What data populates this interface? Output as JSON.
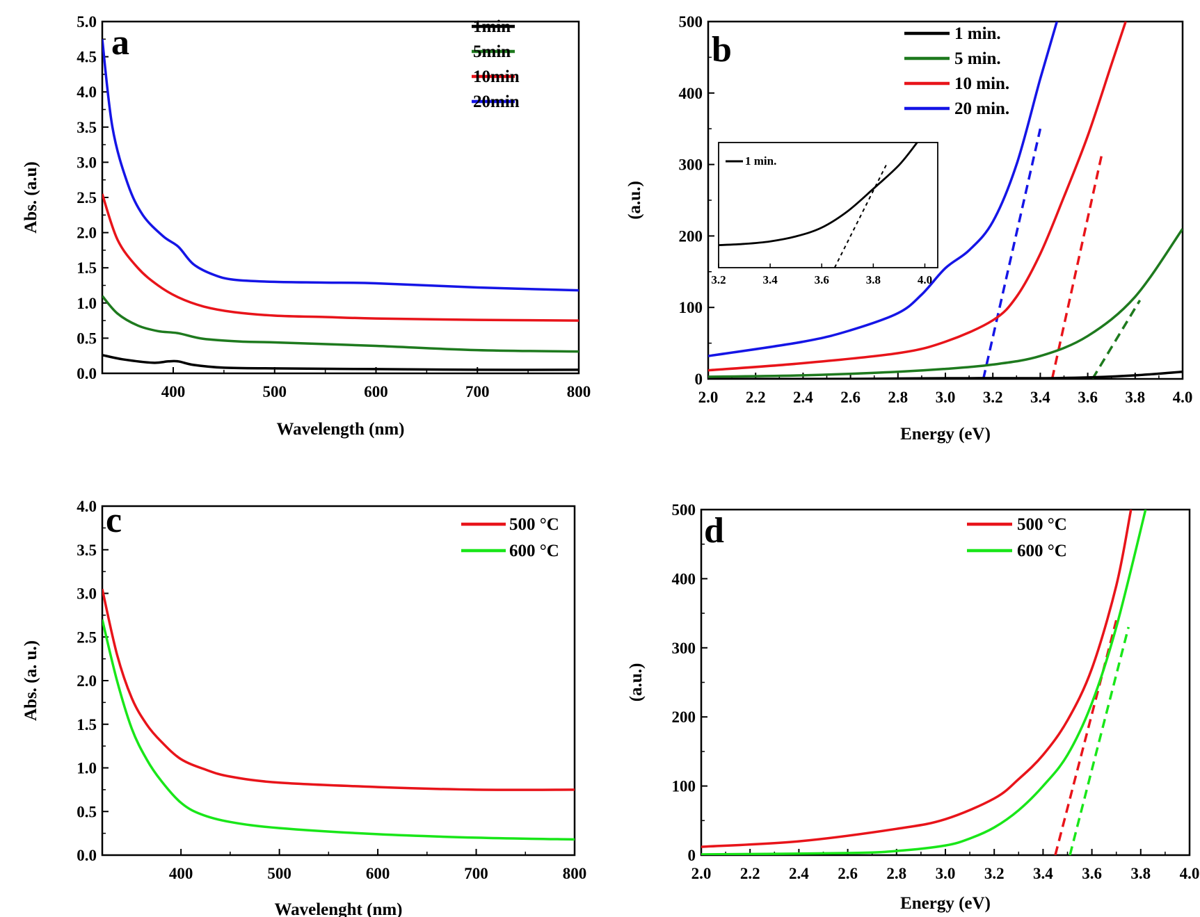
{
  "chart_data": [
    {
      "id": "a",
      "type": "line",
      "panel_label": "a",
      "xlabel": "Wavelength (nm)",
      "ylabel": "Abs. (a.u)",
      "xlim": [
        330,
        800
      ],
      "ylim": [
        0,
        5.0
      ],
      "xticks": [
        400,
        500,
        600,
        700,
        800
      ],
      "xtick_labels": [
        "400",
        "500",
        "600",
        "700",
        "800"
      ],
      "yticks": [
        0,
        0.5,
        1.0,
        1.5,
        2.0,
        2.5,
        3.0,
        3.5,
        4.0,
        4.5,
        5.0
      ],
      "ytick_labels": [
        "0.0",
        "0.5",
        "1.0",
        "1.5",
        "2.0",
        "2.5",
        "3.0",
        "3.5",
        "4.0",
        "4.5",
        "5.0"
      ],
      "legend_position": "top-right",
      "series": [
        {
          "name": "1min",
          "color": "#000000",
          "x": [
            330,
            350,
            380,
            395,
            405,
            420,
            450,
            500,
            600,
            700,
            800
          ],
          "y": [
            0.26,
            0.2,
            0.15,
            0.17,
            0.17,
            0.12,
            0.08,
            0.07,
            0.06,
            0.05,
            0.05
          ]
        },
        {
          "name": "5min",
          "color": "#1e7a1e",
          "x": [
            330,
            345,
            365,
            385,
            405,
            430,
            470,
            500,
            600,
            700,
            800
          ],
          "y": [
            1.1,
            0.85,
            0.68,
            0.6,
            0.57,
            0.49,
            0.45,
            0.44,
            0.39,
            0.33,
            0.31
          ]
        },
        {
          "name": "10min",
          "color": "#e8141a",
          "x": [
            330,
            345,
            365,
            385,
            405,
            430,
            460,
            500,
            550,
            600,
            700,
            800
          ],
          "y": [
            2.55,
            1.9,
            1.5,
            1.25,
            1.08,
            0.95,
            0.87,
            0.82,
            0.8,
            0.78,
            0.76,
            0.75
          ]
        },
        {
          "name": "20min",
          "color": "#1515e6",
          "x": [
            330,
            340,
            355,
            370,
            390,
            405,
            420,
            440,
            460,
            500,
            550,
            600,
            700,
            800
          ],
          "y": [
            4.75,
            3.5,
            2.7,
            2.25,
            1.95,
            1.8,
            1.55,
            1.4,
            1.33,
            1.3,
            1.29,
            1.28,
            1.22,
            1.18
          ]
        }
      ]
    },
    {
      "id": "b",
      "type": "line",
      "panel_label": "b",
      "xlabel": "Energy (eV)",
      "ylabel": "(a.u.)",
      "xlim": [
        2.0,
        4.0
      ],
      "ylim": [
        0,
        500
      ],
      "xticks": [
        2.0,
        2.2,
        2.4,
        2.6,
        2.8,
        3.0,
        3.2,
        3.4,
        3.6,
        3.8,
        4.0
      ],
      "xtick_labels": [
        "2.0",
        "2.2",
        "2.4",
        "2.6",
        "2.8",
        "3.0",
        "3.2",
        "3.4",
        "3.6",
        "3.8",
        "4.0"
      ],
      "yticks": [
        0,
        100,
        200,
        300,
        400,
        500
      ],
      "ytick_labels": [
        "0",
        "100",
        "200",
        "300",
        "400",
        "500"
      ],
      "legend_position": "top-center",
      "series": [
        {
          "name": "1 min.",
          "color": "#000000",
          "x": [
            2.0,
            2.6,
            3.0,
            3.4,
            3.6,
            3.8,
            4.0
          ],
          "y": [
            0,
            0,
            1,
            1,
            2,
            5,
            10
          ]
        },
        {
          "name": "5 min.",
          "color": "#1e7a1e",
          "x": [
            2.0,
            2.4,
            2.8,
            3.0,
            3.2,
            3.4,
            3.6,
            3.8,
            4.0
          ],
          "y": [
            3,
            5,
            10,
            14,
            20,
            32,
            60,
            115,
            210
          ]
        },
        {
          "name": "10 min.",
          "color": "#e8141a",
          "x": [
            2.0,
            2.4,
            2.8,
            3.0,
            3.2,
            3.3,
            3.4,
            3.5,
            3.6,
            3.7,
            3.76
          ],
          "y": [
            12,
            22,
            36,
            52,
            82,
            115,
            175,
            255,
            340,
            440,
            500
          ]
        },
        {
          "name": "20 min.",
          "color": "#1515e6",
          "x": [
            2.0,
            2.4,
            2.6,
            2.8,
            2.9,
            3.0,
            3.1,
            3.2,
            3.3,
            3.4,
            3.47
          ],
          "y": [
            32,
            52,
            68,
            92,
            118,
            155,
            180,
            220,
            300,
            420,
            500
          ]
        }
      ],
      "fits": [
        {
          "color": "#1515e6",
          "x": [
            3.16,
            3.4
          ],
          "y": [
            0,
            350
          ]
        },
        {
          "color": "#e8141a",
          "x": [
            3.45,
            3.66
          ],
          "y": [
            0,
            315
          ]
        },
        {
          "color": "#1e7a1e",
          "x": [
            3.62,
            3.82
          ],
          "y": [
            0,
            110
          ]
        }
      ],
      "inset": {
        "xlim": [
          3.2,
          4.05
        ],
        "ylim": [
          0,
          100
        ],
        "xticks": [
          3.2,
          3.4,
          3.6,
          3.8,
          4.0
        ],
        "xtick_labels": [
          "3.2",
          "3.4",
          "3.6",
          "3.8",
          "4.0"
        ],
        "legend": "1 min.",
        "series": {
          "color": "#000000",
          "x": [
            3.2,
            3.3,
            3.4,
            3.5,
            3.6,
            3.7,
            3.8,
            3.9,
            3.97
          ],
          "y": [
            18,
            19,
            21,
            25,
            32,
            45,
            63,
            82,
            100
          ]
        },
        "fit": {
          "x": [
            3.65,
            3.85
          ],
          "y": [
            0,
            82
          ]
        }
      }
    },
    {
      "id": "c",
      "type": "line",
      "panel_label": "c",
      "xlabel": "Wavelenght (nm)",
      "ylabel": "Abs. (a. u.)",
      "xlim": [
        320,
        800
      ],
      "ylim": [
        0,
        4.0
      ],
      "xticks": [
        400,
        500,
        600,
        700,
        800
      ],
      "xtick_labels": [
        "400",
        "500",
        "600",
        "700",
        "800"
      ],
      "yticks": [
        0,
        0.5,
        1.0,
        1.5,
        2.0,
        2.5,
        3.0,
        3.5,
        4.0
      ],
      "ytick_labels": [
        "0.0",
        "0.5",
        "1.0",
        "1.5",
        "2.0",
        "2.5",
        "3.0",
        "3.5",
        "4.0"
      ],
      "legend_position": "top-right",
      "series": [
        {
          "name": "500 °C",
          "color": "#e8141a",
          "x": [
            320,
            335,
            350,
            365,
            380,
            400,
            425,
            450,
            500,
            600,
            700,
            800
          ],
          "y": [
            3.05,
            2.3,
            1.8,
            1.5,
            1.3,
            1.1,
            0.98,
            0.9,
            0.83,
            0.78,
            0.75,
            0.75
          ]
        },
        {
          "name": "600 °C",
          "color": "#19e619",
          "x": [
            320,
            335,
            350,
            365,
            380,
            400,
            420,
            450,
            500,
            600,
            700,
            800
          ],
          "y": [
            2.7,
            2.0,
            1.45,
            1.1,
            0.85,
            0.6,
            0.47,
            0.38,
            0.31,
            0.24,
            0.2,
            0.18
          ]
        }
      ]
    },
    {
      "id": "d",
      "type": "line",
      "panel_label": "d",
      "xlabel": "Energy (eV)",
      "ylabel": "(a.u.)",
      "xlim": [
        2.0,
        4.0
      ],
      "ylim": [
        0,
        500
      ],
      "xticks": [
        2.0,
        2.2,
        2.4,
        2.6,
        2.8,
        3.0,
        3.2,
        3.4,
        3.6,
        3.8,
        4.0
      ],
      "xtick_labels": [
        "2.0",
        "2.2",
        "2.4",
        "2.6",
        "2.8",
        "3.0",
        "3.2",
        "3.4",
        "3.6",
        "3.8",
        "4.0"
      ],
      "yticks": [
        0,
        100,
        200,
        300,
        400,
        500
      ],
      "ytick_labels": [
        "0",
        "100",
        "200",
        "300",
        "400",
        "500"
      ],
      "legend_position": "top-right",
      "series": [
        {
          "name": "500 °C",
          "color": "#e8141a",
          "x": [
            2.0,
            2.4,
            2.8,
            3.0,
            3.2,
            3.3,
            3.4,
            3.5,
            3.6,
            3.7,
            3.76
          ],
          "y": [
            12,
            20,
            38,
            52,
            82,
            110,
            145,
            195,
            270,
            390,
            500
          ]
        },
        {
          "name": "600 °C",
          "color": "#19e619",
          "x": [
            2.0,
            2.6,
            2.8,
            3.0,
            3.1,
            3.2,
            3.3,
            3.4,
            3.5,
            3.6,
            3.7,
            3.82
          ],
          "y": [
            1,
            3,
            6,
            14,
            24,
            40,
            65,
            100,
            145,
            220,
            330,
            500
          ]
        }
      ],
      "fits": [
        {
          "color": "#e8141a",
          "x": [
            3.45,
            3.7
          ],
          "y": [
            0,
            340
          ]
        },
        {
          "color": "#19e619",
          "x": [
            3.51,
            3.75
          ],
          "y": [
            0,
            330
          ]
        }
      ]
    }
  ]
}
